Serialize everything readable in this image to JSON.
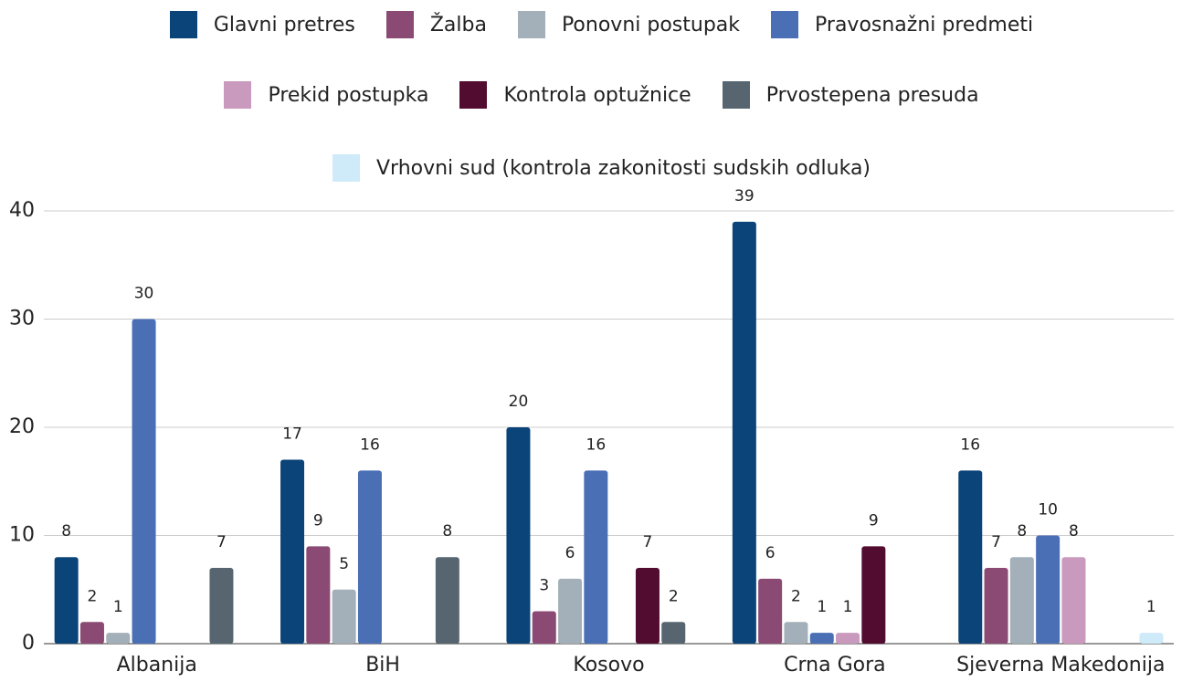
{
  "chart_data": {
    "type": "bar",
    "categories": [
      "Albanija",
      "BiH",
      "Kosovo",
      "Crna Gora",
      "Sjeverna Makedonija"
    ],
    "series": [
      {
        "name": "Glavni pretres",
        "color": "#0b4479",
        "values": [
          8,
          17,
          20,
          39,
          16
        ]
      },
      {
        "name": "Žalba",
        "color": "#8b4a74",
        "values": [
          2,
          9,
          3,
          6,
          7
        ]
      },
      {
        "name": "Ponovni postupak",
        "color": "#a4b0b9",
        "values": [
          1,
          5,
          6,
          2,
          8
        ]
      },
      {
        "name": "Pravosnažni predmeti",
        "color": "#4a6fb5",
        "values": [
          30,
          16,
          16,
          1,
          10
        ]
      },
      {
        "name": "Prekid postupka",
        "color": "#c99abd",
        "values": [
          null,
          null,
          null,
          1,
          8
        ]
      },
      {
        "name": "Kontrola optužnice",
        "color": "#520c30",
        "values": [
          null,
          null,
          7,
          9,
          null
        ]
      },
      {
        "name": "Prvostepena presuda",
        "color": "#56656f",
        "values": [
          7,
          8,
          2,
          null,
          null
        ]
      },
      {
        "name": "Vrhovni sud (kontrola zakonitosti sudskih odluka)",
        "color": "#cfeaf9",
        "values": [
          null,
          null,
          null,
          null,
          1
        ]
      }
    ],
    "ylim": [
      0,
      40
    ],
    "yticks": [
      0,
      10,
      20,
      30,
      40
    ],
    "grid": true,
    "legend": "top"
  }
}
